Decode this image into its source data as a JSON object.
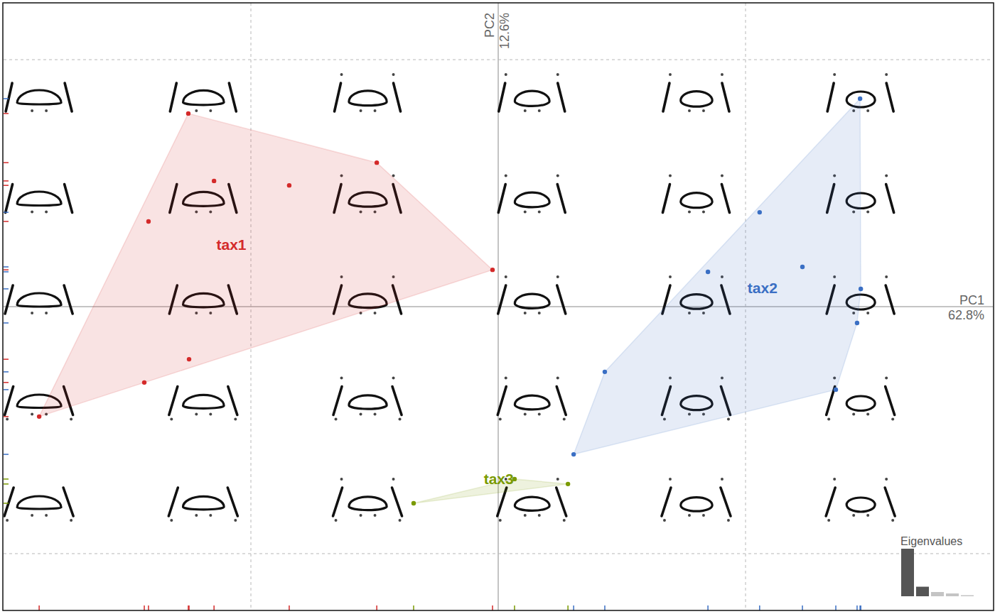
{
  "chart_data": {
    "type": "scatter",
    "xlabel": "PC1",
    "xlabel_percent": {
      "value": 62.8,
      "label": "62.8%"
    },
    "ylabel": "PC2",
    "ylabel_percent": {
      "value": 12.6,
      "label": "12.6%"
    },
    "xlim": [
      -0.2,
      0.2
    ],
    "ylim": [
      -0.123,
      0.123
    ],
    "xticks": [
      -0.1,
      0,
      0.1
    ],
    "yticks": [
      -0.1,
      0,
      0.1
    ],
    "grid": true,
    "tick_labels": false,
    "series": [
      {
        "name": "tax1",
        "color": "#d42a2a",
        "marker": "circle",
        "x": [
          -0.1253,
          -0.0491,
          -0.1149,
          -0.0845,
          -0.1414,
          -0.0023,
          -0.125,
          -0.1431,
          -0.1856
        ],
        "values": [
          0.0782,
          0.0583,
          0.0509,
          0.0491,
          0.0345,
          0.0149,
          -0.0213,
          -0.0307,
          -0.0445
        ]
      },
      {
        "name": "tax2",
        "color": "#3a6fc4",
        "marker": "circle",
        "x": [
          0.1463,
          0.1057,
          0.0848,
          0.123,
          0.1466,
          0.1451,
          0.0431,
          0.1365,
          0.0305
        ],
        "values": [
          0.0842,
          0.0382,
          0.0141,
          0.0161,
          0.0072,
          -0.0066,
          -0.0264,
          -0.0336,
          -0.0598
        ]
      },
      {
        "name": "tax3",
        "color": "#7a9a01",
        "marker": "circle",
        "x": [
          -0.0342,
          0.0066,
          0.0282
        ],
        "values": [
          -0.0796,
          -0.0698,
          -0.0718
        ]
      }
    ],
    "eigenvalues": {
      "title": "Eigenvalues",
      "values": [
        62.8,
        12.6,
        5.6,
        3.7,
        1.4
      ],
      "colors": [
        "#555555",
        "#555555",
        "#c4c4c4",
        "#c4c4c4",
        "#c4c4c4"
      ]
    }
  }
}
